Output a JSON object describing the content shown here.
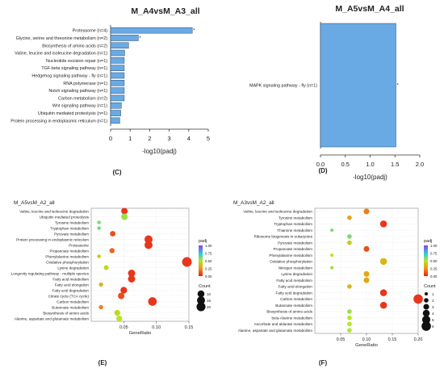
{
  "chart_data": [
    {
      "type": "bar",
      "orientation": "horizontal",
      "panel_label": "(C)",
      "title": "M_A4vsM_A3_all",
      "xlabel": "-log10(padj)",
      "xlim": [
        0,
        5
      ],
      "xticks": [
        "0",
        "1",
        "2",
        "3",
        "4",
        "5"
      ],
      "categories": [
        "Proteasome (n=4)",
        "Glycine, serine and threonine metabolism (n=2)",
        "Biosynthesis of amino acids (n=2)",
        "Valine, leucine and isoleucine degradation (n=1)",
        "Nucleotide excision repair (n=1)",
        "TGF-beta signaling pathway (n=1)",
        "Hedgehog signaling pathway - fly (n=1)",
        "RNA polymerase (n=1)",
        "Notch signaling pathway (n=1)",
        "Carbon metabolism (n=2)",
        "Wnt signaling pathway (n=1)",
        "Ubiquitin mediated proteolysis (n=1)",
        "Protein processing in endoplasmic reticulum (n=1)"
      ],
      "values": [
        4.18,
        1.42,
        0.92,
        0.72,
        0.7,
        0.7,
        0.7,
        0.7,
        0.7,
        0.7,
        0.55,
        0.52,
        0.47
      ],
      "markers": [
        "*",
        "*",
        "",
        "",
        "",
        "",
        "",
        "",
        "",
        "",
        "",
        "",
        ""
      ],
      "bar_color": "#6aaae4"
    },
    {
      "type": "bar",
      "orientation": "horizontal",
      "panel_label": "(D)",
      "title": "M_A5vsM_A4_all",
      "xlabel": "-log10(padj)",
      "xlim": [
        0,
        2
      ],
      "xticks": [
        "0.0",
        "0.5",
        "1.0",
        "1.5",
        "2.0"
      ],
      "categories": [
        "MAPK signaling pathway - fly (n=1)"
      ],
      "values": [
        1.52
      ],
      "markers": [
        "*"
      ],
      "bar_color": "#6aaae4"
    },
    {
      "type": "scatter",
      "panel_label": "(E)",
      "title": "M_A5vsM_A2_all",
      "xlabel": "GeneRatio",
      "xlim": [
        0,
        0.15
      ],
      "xticks": [
        0.05,
        0.1,
        0.15
      ],
      "xtick_labels": [
        "0.05",
        "0.10",
        "0.15"
      ],
      "categories": [
        "Valine, leucine and isoleucine degradation",
        "Ubiquitin mediated proteolysis",
        "Tyrosine metabolism",
        "Tryptophan metabolism",
        "Pyruvate metabolism",
        "Protein processing in endoplasmic reticulum",
        "Proteasome",
        "Propanoate metabolism",
        "Phenylalanine metabolism",
        "Oxidative phosphorylation",
        "Lysine degradation",
        "Longevity regulating pathway - multiple species",
        "Fatty acid metabolism",
        "Fatty acid elongation",
        "Fatty acid degradation",
        "Citrate cycle (TCA cycle)",
        "Carbon metabolism",
        "Butanoate metabolism",
        "Biosynthesis of amino acids",
        "Alanine, aspartate and glutamate metabolism"
      ],
      "points": [
        {
          "x": 0.051,
          "count": 8,
          "padj": 0.05
        },
        {
          "x": 0.051,
          "count": 8,
          "padj": 0.55
        },
        {
          "x": 0.012,
          "count": 1,
          "padj": 0.6
        },
        {
          "x": 0.012,
          "count": 1,
          "padj": 0.6
        },
        {
          "x": 0.033,
          "count": 5,
          "padj": 0.1
        },
        {
          "x": 0.088,
          "count": 15,
          "padj": 0.05
        },
        {
          "x": 0.088,
          "count": 15,
          "padj": 0.05
        },
        {
          "x": 0.032,
          "count": 4,
          "padj": 0.15
        },
        {
          "x": 0.012,
          "count": 1,
          "padj": 0.4
        },
        {
          "x": 0.147,
          "count": 24,
          "padj": 0.05
        },
        {
          "x": 0.023,
          "count": 3,
          "padj": 0.45
        },
        {
          "x": 0.062,
          "count": 11,
          "padj": 0.05
        },
        {
          "x": 0.062,
          "count": 11,
          "padj": 0.05
        },
        {
          "x": 0.015,
          "count": 2,
          "padj": 0.35
        },
        {
          "x": 0.05,
          "count": 9,
          "padj": 0.05
        },
        {
          "x": 0.046,
          "count": 8,
          "padj": 0.1
        },
        {
          "x": 0.094,
          "count": 18,
          "padj": 0.05
        },
        {
          "x": 0.015,
          "count": 2,
          "padj": 0.2
        },
        {
          "x": 0.04,
          "count": 6,
          "padj": 0.45
        },
        {
          "x": 0.043,
          "count": 6,
          "padj": 0.5
        }
      ],
      "color_legend": {
        "title": "padj",
        "ticks": [
          "1.00",
          "0.75",
          "0.50",
          "0.25",
          "0.00"
        ]
      },
      "size_legend": {
        "title": "Count",
        "labels": [
          "10",
          "15",
          "20"
        ]
      }
    },
    {
      "type": "scatter",
      "panel_label": "(F)",
      "title": "M_A3vsM_A2_all",
      "xlabel": "GeneRatio",
      "xlim": [
        0,
        0.2
      ],
      "xticks": [
        0.05,
        0.1,
        0.15,
        0.2
      ],
      "xtick_labels": [
        "0.05",
        "0.10",
        "0.15",
        "0.20"
      ],
      "categories": [
        "Valine, leucine and isoleucine degradation",
        "Tyrosine metabolism",
        "Tryptophan metabolism",
        "Thiamine metabolism",
        "Ribosome biogenesis in eukaryotes",
        "Pyruvate metabolism",
        "Propanoate metabolism",
        "Phenylalanine metabolism",
        "Oxidative phosphorylation",
        "Nitrogen metabolism",
        "Lysine degradation",
        "Fatty acid metabolism",
        "Fatty acid elongation",
        "Fatty acid degradation",
        "Carbon metabolism",
        "Butanoate metabolism",
        "Biosynthesis of amino acids",
        "beta-Alanine metabolism",
        "Ascorbate and aldarate metabolism",
        "Alanine, aspartate and glutamate metabolism"
      ],
      "points": [
        {
          "x": 0.1,
          "count": 3,
          "padj": 0.2
        },
        {
          "x": 0.067,
          "count": 2,
          "padj": 0.3
        },
        {
          "x": 0.133,
          "count": 4,
          "padj": 0.05
        },
        {
          "x": 0.033,
          "count": 1,
          "padj": 0.6
        },
        {
          "x": 0.067,
          "count": 2,
          "padj": 0.6
        },
        {
          "x": 0.067,
          "count": 2,
          "padj": 0.4
        },
        {
          "x": 0.1,
          "count": 3,
          "padj": 0.1
        },
        {
          "x": 0.033,
          "count": 1,
          "padj": 0.5
        },
        {
          "x": 0.133,
          "count": 4,
          "padj": 0.35
        },
        {
          "x": 0.033,
          "count": 1,
          "padj": 0.55
        },
        {
          "x": 0.1,
          "count": 3,
          "padj": 0.3
        },
        {
          "x": 0.1,
          "count": 3,
          "padj": 0.3
        },
        {
          "x": 0.067,
          "count": 2,
          "padj": 0.35
        },
        {
          "x": 0.133,
          "count": 4,
          "padj": 0.05
        },
        {
          "x": 0.2,
          "count": 6,
          "padj": 0.05
        },
        {
          "x": 0.133,
          "count": 4,
          "padj": 0.05
        },
        {
          "x": 0.067,
          "count": 2,
          "padj": 0.55
        },
        {
          "x": 0.067,
          "count": 2,
          "padj": 0.5
        },
        {
          "x": 0.067,
          "count": 2,
          "padj": 0.5
        },
        {
          "x": 0.067,
          "count": 2,
          "padj": 0.5
        }
      ],
      "color_legend": {
        "title": "padj",
        "ticks": [
          "1.00",
          "0.75",
          "0.50",
          "0.25",
          "0.00"
        ]
      },
      "size_legend": {
        "title": "Count",
        "labels": [
          "1",
          "2",
          "3",
          "4",
          "5",
          "6"
        ]
      }
    }
  ]
}
